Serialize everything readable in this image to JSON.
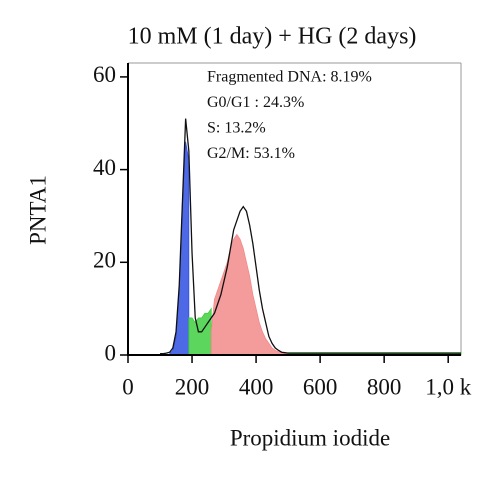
{
  "chart_data": {
    "type": "area",
    "title": "10 mM (1 day) + HG (2 days)",
    "xlabel": "Propidium iodide",
    "ylabel": "PNTA1",
    "annotations": [
      "Fragmented DNA: 8.19%",
      "G0/G1 : 24.3%",
      "S: 13.2%",
      "G2/M: 53.1%"
    ],
    "xlim": [
      0,
      1040
    ],
    "ylim": [
      0,
      63
    ],
    "xticks": [
      0,
      200,
      400,
      600,
      800,
      {
        "value": 1000,
        "label": "1,0 k"
      }
    ],
    "yticks": [
      0,
      20,
      40,
      60
    ],
    "x": [
      100,
      110,
      120,
      130,
      140,
      150,
      160,
      170,
      180,
      190,
      200,
      210,
      220,
      230,
      240,
      250,
      260,
      270,
      280,
      290,
      300,
      310,
      320,
      330,
      340,
      350,
      360,
      370,
      380,
      390,
      400,
      410,
      420,
      430,
      440,
      450,
      460,
      470,
      480,
      490,
      500,
      600,
      800,
      1000,
      1040
    ],
    "series": [
      {
        "style": "area",
        "color": "#2f4fe0",
        "values": [
          null,
          null,
          null,
          0.3,
          1,
          4,
          14,
          33,
          46,
          42,
          null,
          null,
          null,
          null,
          null,
          null,
          null,
          null,
          null,
          null,
          null,
          null,
          null,
          null,
          null,
          null,
          null,
          null,
          null,
          null,
          null,
          null,
          null,
          null,
          null,
          null,
          null,
          null,
          null,
          null,
          null,
          null,
          null,
          null,
          null
        ]
      },
      {
        "style": "area",
        "color": "#3fcf3f",
        "values": [
          null,
          null,
          null,
          null,
          null,
          null,
          null,
          null,
          null,
          8,
          8,
          7,
          8,
          8,
          9,
          9,
          10,
          null,
          null,
          null,
          null,
          null,
          null,
          null,
          null,
          null,
          null,
          null,
          null,
          null,
          null,
          null,
          null,
          null,
          null,
          null,
          null,
          null,
          null,
          null,
          0.5,
          0.5,
          0.5,
          0.5,
          0.5
        ]
      },
      {
        "style": "area",
        "color": "#f28a8a",
        "values": [
          null,
          null,
          null,
          null,
          null,
          null,
          null,
          null,
          null,
          null,
          null,
          null,
          null,
          null,
          null,
          null,
          5,
          12,
          14,
          16,
          18,
          20,
          23,
          25,
          26,
          25,
          23,
          20,
          17,
          13,
          10,
          7,
          5,
          3.5,
          2.5,
          1.5,
          1,
          0.7,
          0.5,
          0.4,
          0.3,
          null,
          null,
          null,
          null
        ]
      },
      {
        "style": "line",
        "color": "#111111",
        "values": [
          0.3,
          0.3,
          0.4,
          0.6,
          1.5,
          5,
          15,
          33,
          51,
          44,
          22,
          8,
          5,
          5,
          6,
          7,
          8,
          9,
          11,
          13,
          16,
          19,
          23,
          27,
          29,
          31,
          32,
          31,
          28,
          24,
          19,
          14,
          10,
          7,
          4,
          2.5,
          1.5,
          1,
          0.6,
          0.5,
          0.4,
          0.4,
          0.4,
          0.4,
          0.4
        ]
      }
    ]
  }
}
